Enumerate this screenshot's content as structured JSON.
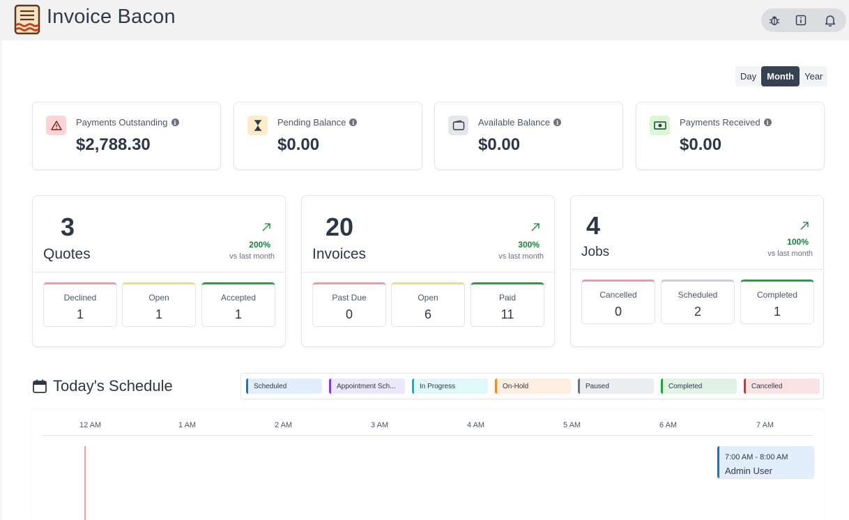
{
  "app": {
    "title": "Invoice Bacon"
  },
  "header": {
    "icons": [
      "bug-icon",
      "info-icon",
      "bell-icon"
    ]
  },
  "period": {
    "options": [
      "Day",
      "Month",
      "Year"
    ],
    "selected": "Month"
  },
  "stats": [
    {
      "label": "Payments Outstanding",
      "value": "$2,788.30",
      "icon": "warning-icon",
      "icon_bg": "#fbd5d5",
      "icon_color": "#b91c1c"
    },
    {
      "label": "Pending Balance",
      "value": "$0.00",
      "icon": "hourglass-icon",
      "icon_bg": "#fdecc8",
      "icon_color": "#2d3748"
    },
    {
      "label": "Available Balance",
      "value": "$0.00",
      "icon": "wallet-icon",
      "icon_bg": "#e5e7eb",
      "icon_color": "#2d3748"
    },
    {
      "label": "Payments Received",
      "value": "$0.00",
      "icon": "cash-icon",
      "icon_bg": "#d9f7d3",
      "icon_color": "#2d3748"
    }
  ],
  "summaries": [
    {
      "count": "3",
      "title": "Quotes",
      "change": "200%",
      "vs": "vs last month",
      "items": [
        {
          "label": "Declined",
          "value": "1",
          "color": "#ee9aa2"
        },
        {
          "label": "Open",
          "value": "1",
          "color": "#f5d98a"
        },
        {
          "label": "Accepted",
          "value": "1",
          "color": "#22a33a"
        }
      ]
    },
    {
      "count": "20",
      "title": "Invoices",
      "change": "300%",
      "vs": "vs last month",
      "items": [
        {
          "label": "Past Due",
          "value": "0",
          "color": "#ee9aa2"
        },
        {
          "label": "Open",
          "value": "6",
          "color": "#f5d98a"
        },
        {
          "label": "Paid",
          "value": "11",
          "color": "#22a33a"
        }
      ]
    },
    {
      "count": "4",
      "title": "Jobs",
      "change": "100%",
      "vs": "vs last month",
      "items": [
        {
          "label": "Cancelled",
          "value": "0",
          "color": "#ee9aa2"
        },
        {
          "label": "Scheduled",
          "value": "2",
          "color": "#c7cfdc"
        },
        {
          "label": "Completed",
          "value": "1",
          "color": "#22a33a"
        }
      ]
    }
  ],
  "schedule": {
    "title": "Today's Schedule",
    "legend": [
      {
        "label": "Scheduled",
        "color": "#1d6fd6",
        "bg": "#e3eefb"
      },
      {
        "label": "Appointment Sch...",
        "color": "#7c3aed",
        "bg": "#ede7fa"
      },
      {
        "label": "In Progress",
        "color": "#06b6d4",
        "bg": "#e0f7fb"
      },
      {
        "label": "On-Hold",
        "color": "#f08a24",
        "bg": "#fdeee2"
      },
      {
        "label": "Paused",
        "color": "#6b7280",
        "bg": "#ebedf0"
      },
      {
        "label": "Completed",
        "color": "#22a33a",
        "bg": "#e2f2e4"
      },
      {
        "label": "Cancelled",
        "color": "#dc2f3c",
        "bg": "#fae3e5"
      }
    ],
    "hours": [
      "12 AM",
      "1 AM",
      "2 AM",
      "3 AM",
      "4 AM",
      "5 AM",
      "6 AM",
      "7 AM"
    ],
    "event": {
      "time": "7:00 AM - 8:00 AM",
      "name": "Admin User"
    }
  }
}
